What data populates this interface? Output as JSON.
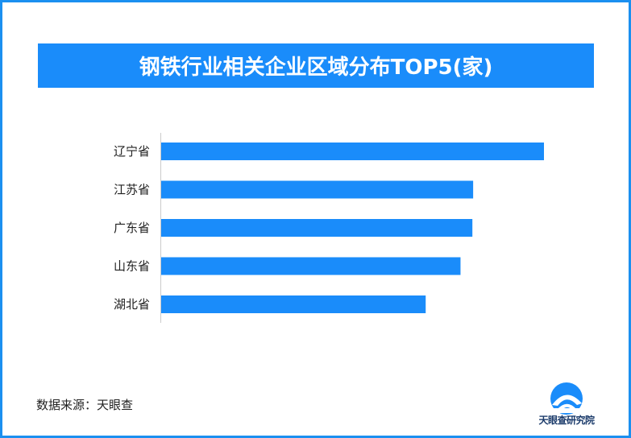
{
  "colors": {
    "accent": "#1a8cfa",
    "bar": "#1a8cfa",
    "axis": "#cccccc",
    "text": "#222222"
  },
  "chart_data": {
    "type": "bar",
    "orientation": "horizontal",
    "title": "钢铁行业相关企业区域分布TOP5(家)",
    "categories": [
      "辽宁省",
      "江苏省",
      "广东省",
      "山东省",
      "湖北省"
    ],
    "values": [
      100,
      81.5,
      81.3,
      78.2,
      69.1
    ],
    "xlabel": "",
    "ylabel": "",
    "xlim": [
      0,
      100
    ],
    "grid": false,
    "legend": "none"
  },
  "footer": {
    "source": "数据来源：天眼查"
  },
  "logo": {
    "icon": "tianyancha-logo-icon",
    "text": "天眼查研究院"
  }
}
